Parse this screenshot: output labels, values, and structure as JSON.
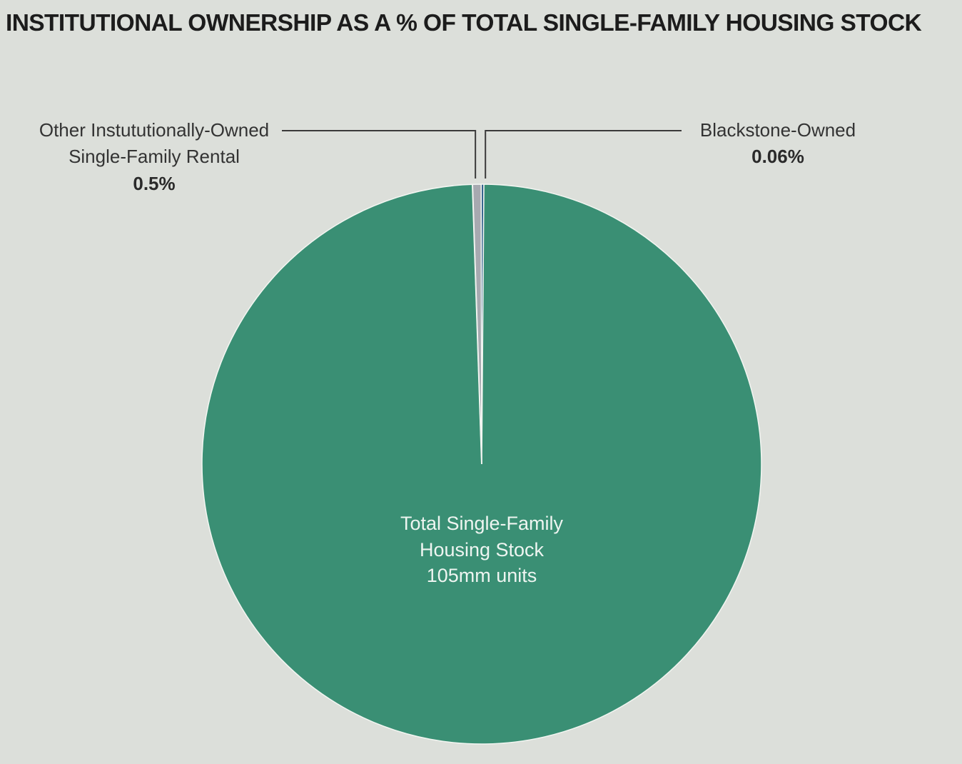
{
  "chart_data": {
    "type": "pie",
    "title": "INSTITUTIONAL OWNERSHIP AS A % OF TOTAL SINGLE-FAMILY HOUSING STOCK",
    "slices": [
      {
        "label_lines": [
          "Other Instututionally-Owned",
          "Single-Family Rental"
        ],
        "value_label": "0.5%",
        "value": 0.5
      },
      {
        "label_lines": [
          "Blackstone-Owned"
        ],
        "value_label": "0.06%",
        "value": 0.06
      },
      {
        "label_lines": [
          "Total Single-Family",
          "Housing Stock",
          "105mm units"
        ],
        "value": 99.44
      }
    ],
    "colors": {
      "other": "#a7a9b0",
      "blackstone": "#2f5d8a",
      "total": "#3a8f74",
      "background": "#dcdfda"
    }
  }
}
